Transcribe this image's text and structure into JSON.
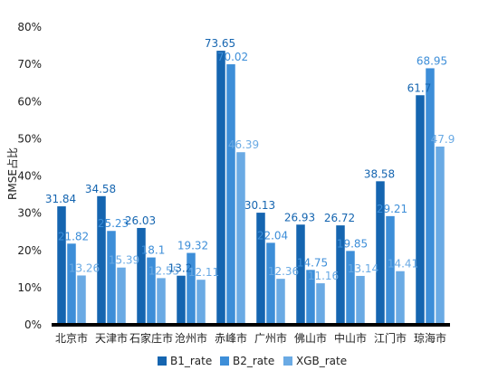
{
  "chart_data": {
    "type": "bar",
    "ylabel": "RMSE占比",
    "yticks": [
      "0%",
      "10%",
      "20%",
      "30%",
      "40%",
      "50%",
      "60%",
      "70%",
      "80%"
    ],
    "ylim": [
      0,
      80
    ],
    "grid": false,
    "legend_position": "bottom",
    "categories": [
      "北京市",
      "天津市",
      "石家庄市",
      "沧州市",
      "赤峰市",
      "广州市",
      "佛山市",
      "中山市",
      "江门市",
      "琼海市"
    ],
    "series": [
      {
        "name": "B1_rate",
        "color": "#1565b0",
        "values": [
          31.84,
          34.58,
          26.03,
          13.2,
          73.65,
          30.13,
          26.93,
          26.72,
          38.58,
          61.7
        ],
        "labels": [
          "31.84",
          "34.58",
          "26.03",
          "13.2",
          "73.65",
          "30.13",
          "26.93",
          "26.72",
          "38.58",
          "61.7"
        ]
      },
      {
        "name": "B2_rate",
        "color": "#3d8ed8",
        "values": [
          21.82,
          25.23,
          18.1,
          19.32,
          70.02,
          22.04,
          14.75,
          19.85,
          29.21,
          68.95
        ],
        "labels": [
          "21.82",
          "25.23",
          "18.1",
          "19.32",
          "70.02",
          "22.04",
          "14.75",
          "19.85",
          "29.21",
          "68.95"
        ]
      },
      {
        "name": "XGB_rate",
        "color": "#6aaae4",
        "values": [
          13.26,
          15.39,
          12.55,
          12.11,
          46.39,
          12.36,
          11.16,
          13.14,
          14.41,
          47.9
        ],
        "labels": [
          "13.26",
          "15.39",
          "12.55",
          "12.11",
          "46.39",
          "12.36",
          "11.16",
          "13.14",
          "14.41",
          "47.9"
        ]
      }
    ]
  }
}
